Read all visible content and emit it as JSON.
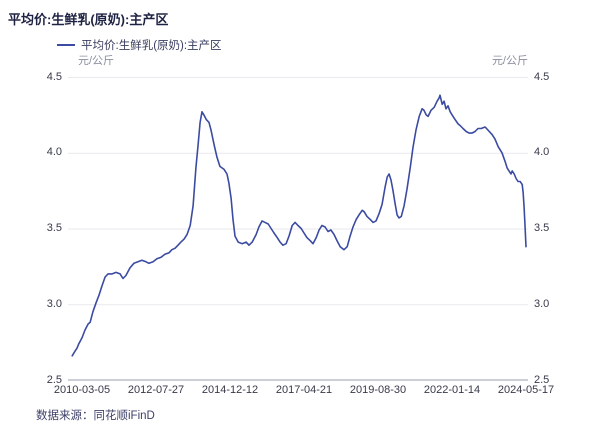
{
  "page": {
    "title": "平均价:生鲜乳(原奶):主产区"
  },
  "legend": {
    "label": "平均价:生鲜乳(原奶):主产区"
  },
  "units": {
    "left": "元/公斤",
    "right": "元/公斤"
  },
  "source": {
    "text": "数据来源：同花顺iFinD"
  },
  "colors": {
    "line": "#3b4ba1",
    "grid": "#e9e9ee",
    "axis_line": "#989eb2",
    "title": "#1f2343",
    "tick_label": "#383a4a",
    "unit_label": "#8b8fa0",
    "source_text": "#3f416a"
  },
  "chart_data": {
    "type": "line",
    "title": "平均价:生鲜乳(原奶):主产区",
    "series_name": "平均价:生鲜乳(原奶):主产区",
    "xlabel": "",
    "ylabel": "元/公斤",
    "ylim": [
      2.5,
      4.5
    ],
    "y_ticks": [
      "4.5",
      "4.0",
      "3.5",
      "3.0",
      "2.5"
    ],
    "x_tick_labels": [
      "2010-03-05",
      "2012-07-27",
      "2014-12-12",
      "2017-04-21",
      "2019-08-30",
      "2022-01-14",
      "2024-05-17"
    ],
    "x_range_decimal_years": [
      2010.175,
      2024.37
    ],
    "grid": "horizontal-only",
    "legend_position": "top-left",
    "points_format": "[decimal_year, price_yuan_per_kg]",
    "points": [
      [
        2010.18,
        2.66
      ],
      [
        2010.27,
        2.69
      ],
      [
        2010.33,
        2.71
      ],
      [
        2010.39,
        2.74
      ],
      [
        2010.49,
        2.78
      ],
      [
        2010.58,
        2.83
      ],
      [
        2010.68,
        2.87
      ],
      [
        2010.74,
        2.88
      ],
      [
        2010.83,
        2.95
      ],
      [
        2010.93,
        3.01
      ],
      [
        2011.02,
        3.06
      ],
      [
        2011.11,
        3.12
      ],
      [
        2011.21,
        3.18
      ],
      [
        2011.3,
        3.2
      ],
      [
        2011.43,
        3.2
      ],
      [
        2011.55,
        3.21
      ],
      [
        2011.68,
        3.2
      ],
      [
        2011.77,
        3.17
      ],
      [
        2011.86,
        3.19
      ],
      [
        2011.99,
        3.24
      ],
      [
        2012.11,
        3.27
      ],
      [
        2012.24,
        3.28
      ],
      [
        2012.36,
        3.29
      ],
      [
        2012.49,
        3.28
      ],
      [
        2012.58,
        3.27
      ],
      [
        2012.71,
        3.28
      ],
      [
        2012.83,
        3.3
      ],
      [
        2012.96,
        3.31
      ],
      [
        2013.08,
        3.33
      ],
      [
        2013.21,
        3.34
      ],
      [
        2013.3,
        3.36
      ],
      [
        2013.4,
        3.37
      ],
      [
        2013.49,
        3.39
      ],
      [
        2013.58,
        3.41
      ],
      [
        2013.68,
        3.43
      ],
      [
        2013.77,
        3.46
      ],
      [
        2013.87,
        3.52
      ],
      [
        2013.96,
        3.65
      ],
      [
        2014.05,
        3.9
      ],
      [
        2014.12,
        4.06
      ],
      [
        2014.18,
        4.2
      ],
      [
        2014.24,
        4.27
      ],
      [
        2014.3,
        4.25
      ],
      [
        2014.37,
        4.22
      ],
      [
        2014.46,
        4.2
      ],
      [
        2014.52,
        4.15
      ],
      [
        2014.62,
        4.05
      ],
      [
        2014.71,
        3.97
      ],
      [
        2014.8,
        3.91
      ],
      [
        2014.93,
        3.89
      ],
      [
        2015.02,
        3.86
      ],
      [
        2015.08,
        3.8
      ],
      [
        2015.15,
        3.7
      ],
      [
        2015.21,
        3.56
      ],
      [
        2015.27,
        3.45
      ],
      [
        2015.37,
        3.41
      ],
      [
        2015.49,
        3.4
      ],
      [
        2015.62,
        3.41
      ],
      [
        2015.71,
        3.39
      ],
      [
        2015.81,
        3.41
      ],
      [
        2015.93,
        3.46
      ],
      [
        2016.02,
        3.51
      ],
      [
        2016.12,
        3.55
      ],
      [
        2016.21,
        3.54
      ],
      [
        2016.31,
        3.53
      ],
      [
        2016.4,
        3.5
      ],
      [
        2016.49,
        3.47
      ],
      [
        2016.59,
        3.44
      ],
      [
        2016.68,
        3.41
      ],
      [
        2016.77,
        3.39
      ],
      [
        2016.87,
        3.4
      ],
      [
        2016.96,
        3.45
      ],
      [
        2017.06,
        3.52
      ],
      [
        2017.15,
        3.54
      ],
      [
        2017.24,
        3.52
      ],
      [
        2017.34,
        3.5
      ],
      [
        2017.43,
        3.47
      ],
      [
        2017.52,
        3.44
      ],
      [
        2017.62,
        3.42
      ],
      [
        2017.71,
        3.4
      ],
      [
        2017.81,
        3.44
      ],
      [
        2017.9,
        3.49
      ],
      [
        2017.99,
        3.52
      ],
      [
        2018.09,
        3.51
      ],
      [
        2018.18,
        3.48
      ],
      [
        2018.27,
        3.49
      ],
      [
        2018.37,
        3.46
      ],
      [
        2018.46,
        3.42
      ],
      [
        2018.56,
        3.38
      ],
      [
        2018.68,
        3.36
      ],
      [
        2018.78,
        3.38
      ],
      [
        2018.87,
        3.45
      ],
      [
        2018.96,
        3.51
      ],
      [
        2019.06,
        3.56
      ],
      [
        2019.15,
        3.59
      ],
      [
        2019.25,
        3.62
      ],
      [
        2019.31,
        3.61
      ],
      [
        2019.4,
        3.58
      ],
      [
        2019.5,
        3.56
      ],
      [
        2019.59,
        3.54
      ],
      [
        2019.68,
        3.55
      ],
      [
        2019.78,
        3.6
      ],
      [
        2019.87,
        3.66
      ],
      [
        2019.96,
        3.77
      ],
      [
        2020.03,
        3.84
      ],
      [
        2020.09,
        3.86
      ],
      [
        2020.15,
        3.82
      ],
      [
        2020.21,
        3.75
      ],
      [
        2020.28,
        3.66
      ],
      [
        2020.34,
        3.59
      ],
      [
        2020.4,
        3.57
      ],
      [
        2020.47,
        3.58
      ],
      [
        2020.56,
        3.65
      ],
      [
        2020.65,
        3.76
      ],
      [
        2020.75,
        3.9
      ],
      [
        2020.84,
        4.04
      ],
      [
        2020.93,
        4.15
      ],
      [
        2021.03,
        4.24
      ],
      [
        2021.12,
        4.29
      ],
      [
        2021.18,
        4.28
      ],
      [
        2021.25,
        4.25
      ],
      [
        2021.31,
        4.24
      ],
      [
        2021.4,
        4.28
      ],
      [
        2021.5,
        4.3
      ],
      [
        2021.59,
        4.34
      ],
      [
        2021.65,
        4.36
      ],
      [
        2021.68,
        4.38
      ],
      [
        2021.75,
        4.32
      ],
      [
        2021.81,
        4.34
      ],
      [
        2021.87,
        4.29
      ],
      [
        2021.93,
        4.31
      ],
      [
        2022.0,
        4.27
      ],
      [
        2022.06,
        4.25
      ],
      [
        2022.15,
        4.22
      ],
      [
        2022.25,
        4.19
      ],
      [
        2022.31,
        4.18
      ],
      [
        2022.4,
        4.16
      ],
      [
        2022.5,
        4.14
      ],
      [
        2022.59,
        4.13
      ],
      [
        2022.68,
        4.13
      ],
      [
        2022.78,
        4.14
      ],
      [
        2022.87,
        4.16
      ],
      [
        2022.97,
        4.16
      ],
      [
        2023.09,
        4.17
      ],
      [
        2023.18,
        4.15
      ],
      [
        2023.31,
        4.12
      ],
      [
        2023.4,
        4.09
      ],
      [
        2023.5,
        4.04
      ],
      [
        2023.62,
        4.0
      ],
      [
        2023.72,
        3.94
      ],
      [
        2023.78,
        3.9
      ],
      [
        2023.84,
        3.88
      ],
      [
        2023.9,
        3.86
      ],
      [
        2023.94,
        3.88
      ],
      [
        2024.0,
        3.86
      ],
      [
        2024.06,
        3.83
      ],
      [
        2024.12,
        3.81
      ],
      [
        2024.19,
        3.81
      ],
      [
        2024.25,
        3.79
      ],
      [
        2024.28,
        3.74
      ],
      [
        2024.31,
        3.64
      ],
      [
        2024.34,
        3.52
      ],
      [
        2024.37,
        3.38
      ]
    ]
  }
}
